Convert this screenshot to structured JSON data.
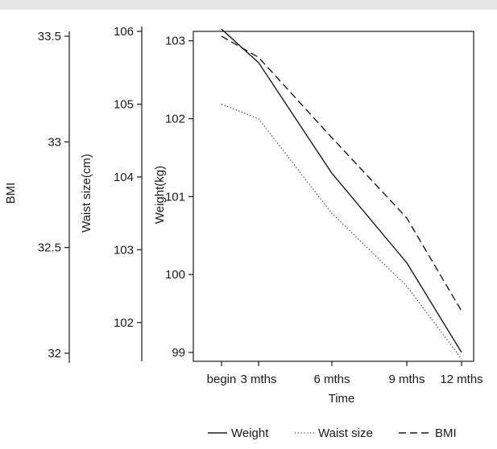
{
  "chart_data": {
    "type": "line",
    "x": [
      "begin",
      "3 mths",
      "6 mths",
      "9 mths",
      "12 mths"
    ],
    "xlabel": "Time",
    "axes": [
      {
        "id": "bmi",
        "label": "BMI",
        "ylim": [
          32,
          33.5
        ],
        "ticks": [
          "32",
          "32.5",
          "33",
          "33.5"
        ]
      },
      {
        "id": "waist",
        "label": "Waist size(cm)",
        "ylim": [
          101.6,
          106
        ],
        "ticks": [
          "102",
          "103",
          "104",
          "105",
          "106"
        ]
      },
      {
        "id": "weight",
        "label": "Weight(kg)",
        "ylim": [
          99,
          103.1
        ],
        "ticks": [
          "99",
          "100",
          "101",
          "102",
          "103"
        ]
      }
    ],
    "series": [
      {
        "name": "Weight",
        "axis": "weight",
        "style": "solid",
        "values": [
          103.15,
          102.72,
          101.3,
          100.15,
          99.0
        ]
      },
      {
        "name": "Waist size",
        "axis": "waist",
        "style": "dotted",
        "values": [
          105.0,
          104.8,
          103.5,
          102.5,
          101.5
        ]
      },
      {
        "name": "BMI",
        "axis": "bmi",
        "style": "dashed",
        "values": [
          33.5,
          33.4,
          33.02,
          32.64,
          32.2
        ]
      }
    ],
    "legend": "bottom-right",
    "grid": false,
    "line_color": "#1a1a1a"
  }
}
